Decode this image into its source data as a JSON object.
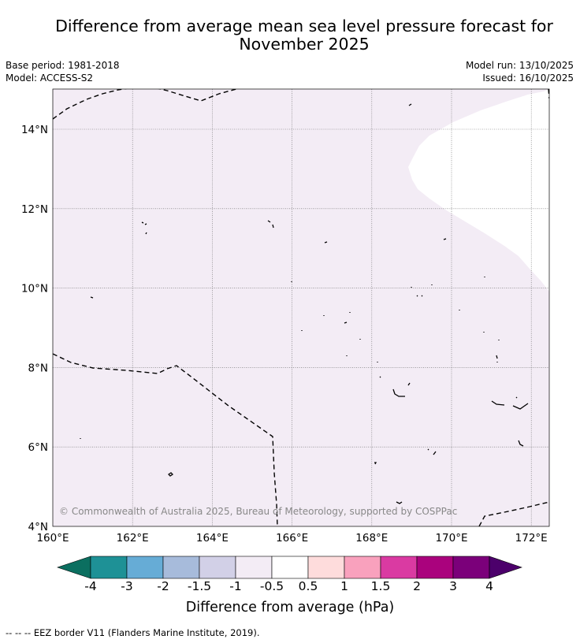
{
  "header": {
    "title_line1": "Difference from average mean sea level pressure forecast for",
    "title_line2": "November 2025",
    "base_period": "Base period: 1981-2018",
    "model": "Model: ACCESS-S2",
    "model_run": "Model run: 13/10/2025",
    "issued": "Issued: 16/10/2025"
  },
  "map": {
    "copyright": "© Commonwealth of Australia 2025, Bureau of Meteorology, supported by COSPPac",
    "lat_labels": [
      "4°N",
      "6°N",
      "8°N",
      "10°N",
      "12°N",
      "14°N"
    ],
    "lon_labels": [
      "160°E",
      "162°E",
      "164°E",
      "166°E",
      "168°E",
      "170°E",
      "172°E"
    ],
    "fill_color": "#f3ecf5",
    "neutral_color": "#ffffff",
    "region_category_main": "-1 to -0.5",
    "region_category_northeast": "-0.5 to 0.5"
  },
  "colorbar": {
    "label": "Difference from average (hPa)",
    "ticks": [
      "-4",
      "-3",
      "-2",
      "-1.5",
      "-1",
      "-0.5",
      "0.5",
      "1",
      "1.5",
      "2",
      "3",
      "4"
    ],
    "colors": [
      "#0b6f60",
      "#1e9196",
      "#66acd6",
      "#a7bbdb",
      "#d2d0e7",
      "#f3ecf5",
      "#ffffff",
      "#fedcdc",
      "#f9a1bd",
      "#da3aa2",
      "#aa027d",
      "#7b007a",
      "#4c006b"
    ]
  },
  "legend": {
    "eez_line": "--  --  -- EEZ border V11 (Flanders Marine Institute, 2019)."
  }
}
